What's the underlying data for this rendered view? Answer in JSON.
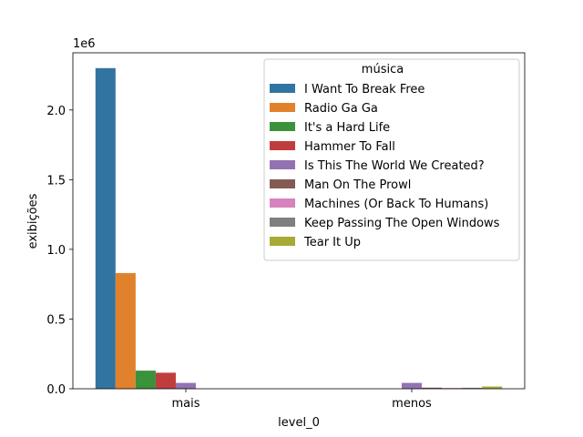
{
  "chart_data": {
    "type": "bar",
    "title": "",
    "xlabel": "level_0",
    "ylabel": "exibições",
    "y_offset_label": "1e6",
    "y_multiplier": 1000000,
    "ylim": [
      0,
      2.41
    ],
    "yticks": [
      0.0,
      0.5,
      1.0,
      1.5,
      2.0
    ],
    "ytick_labels": [
      "0.0",
      "0.5",
      "1.0",
      "1.5",
      "2.0"
    ],
    "categories": [
      "mais",
      "menos"
    ],
    "legend": {
      "title": "música",
      "position": "upper-right"
    },
    "series": [
      {
        "name": "I Want To Break Free",
        "color": "#3274a1",
        "values": [
          2.3,
          0
        ]
      },
      {
        "name": "Radio Ga Ga",
        "color": "#e1812c",
        "values": [
          0.83,
          0
        ]
      },
      {
        "name": "It's a Hard Life",
        "color": "#3a923a",
        "values": [
          0.13,
          0
        ]
      },
      {
        "name": "Hammer To Fall",
        "color": "#c03d3e",
        "values": [
          0.115,
          0
        ]
      },
      {
        "name": "Is This The World We Created?",
        "color": "#9372b2",
        "values": [
          0.042,
          0.042
        ]
      },
      {
        "name": "Man On The Prowl",
        "color": "#845b53",
        "values": [
          0,
          0.008
        ]
      },
      {
        "name": "Machines (Or Back To Humans)",
        "color": "#d684bd",
        "values": [
          0,
          0.006
        ]
      },
      {
        "name": "Keep Passing The Open Windows",
        "color": "#7f7f7f",
        "values": [
          0,
          0.007
        ]
      },
      {
        "name": "Tear It Up",
        "color": "#a9aa35",
        "values": [
          0,
          0.016
        ]
      }
    ]
  }
}
